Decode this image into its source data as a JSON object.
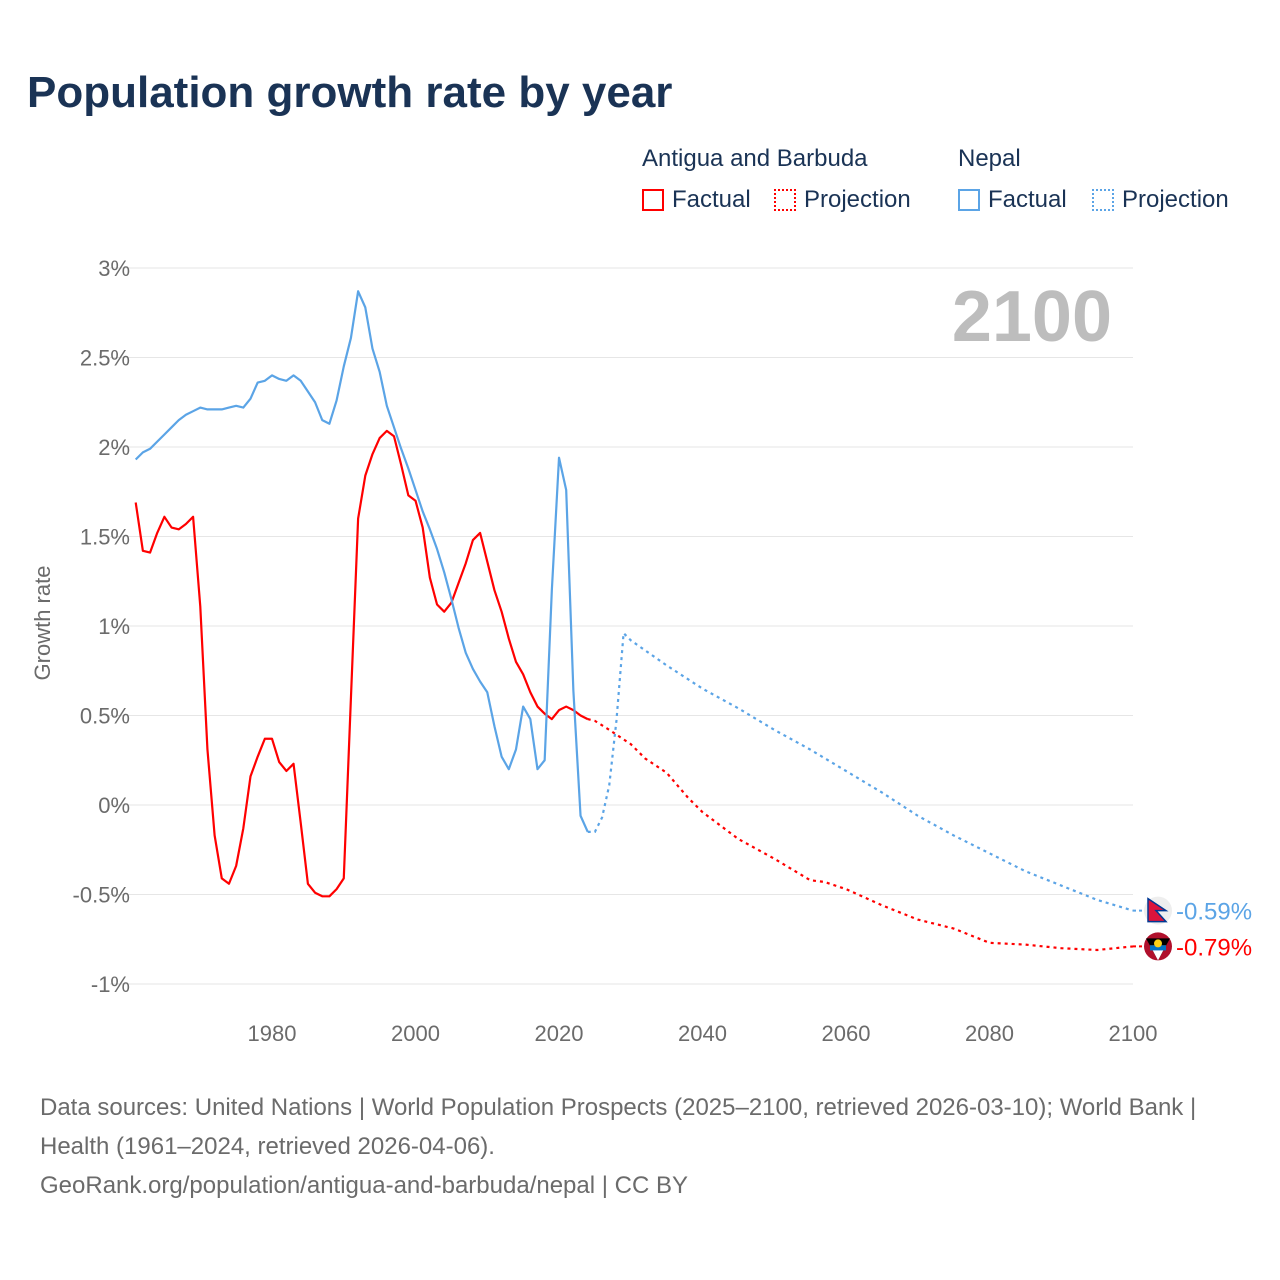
{
  "chart_data": {
    "type": "line",
    "title": "Population growth rate by year",
    "ylabel": "Growth rate",
    "xlabel": "",
    "xlim": [
      1961,
      2100
    ],
    "ylim": [
      -1,
      3
    ],
    "x_ticks": [
      "1980",
      "2000",
      "2020",
      "2040",
      "2060",
      "2080",
      "2100"
    ],
    "x_tick_values": [
      1980,
      2000,
      2020,
      2040,
      2060,
      2080,
      2100
    ],
    "y_ticks": [
      "3%",
      "2.5%",
      "2%",
      "1.5%",
      "1%",
      "0.5%",
      "0%",
      "-0.5%",
      "-1%"
    ],
    "y_tick_values": [
      3,
      2.5,
      2,
      1.5,
      1,
      0.5,
      0,
      -0.5,
      -1
    ],
    "grid": true,
    "current_year": "2100",
    "legend_position": "top-right",
    "series": [
      {
        "name": "Antigua and Barbuda",
        "color": "#ff0000",
        "end_label": "-0.79%",
        "factual_label": "Factual",
        "projection_label": "Projection",
        "factual": {
          "start_year": 1961,
          "values": [
            1.69,
            1.42,
            1.41,
            1.52,
            1.61,
            1.55,
            1.54,
            1.57,
            1.61,
            1.11,
            0.31,
            -0.17,
            -0.41,
            -0.44,
            -0.34,
            -0.13,
            0.16,
            0.27,
            0.37,
            0.37,
            0.24,
            0.19,
            0.23,
            -0.1,
            -0.44,
            -0.49,
            -0.51,
            -0.51,
            -0.47,
            -0.41,
            0.6,
            1.6,
            1.84,
            1.96,
            2.05,
            2.09,
            2.06,
            1.9,
            1.73,
            1.7,
            1.55,
            1.27,
            1.12,
            1.08,
            1.13,
            1.24,
            1.35,
            1.48,
            1.52,
            1.36,
            1.2,
            1.08,
            0.93,
            0.8,
            0.73,
            0.63,
            0.55,
            0.51,
            0.48,
            0.53,
            0.55,
            0.53,
            0.5,
            0.48
          ]
        },
        "projection": {
          "points": [
            [
              2024,
              0.48
            ],
            [
              2025,
              0.47
            ],
            [
              2027,
              0.42
            ],
            [
              2030,
              0.34
            ],
            [
              2032,
              0.26
            ],
            [
              2035,
              0.18
            ],
            [
              2038,
              0.04
            ],
            [
              2040,
              -0.04
            ],
            [
              2045,
              -0.19
            ],
            [
              2050,
              -0.3
            ],
            [
              2055,
              -0.42
            ],
            [
              2057,
              -0.43
            ],
            [
              2060,
              -0.47
            ],
            [
              2065,
              -0.56
            ],
            [
              2070,
              -0.64
            ],
            [
              2075,
              -0.69
            ],
            [
              2080,
              -0.77
            ],
            [
              2085,
              -0.78
            ],
            [
              2090,
              -0.8
            ],
            [
              2095,
              -0.81
            ],
            [
              2100,
              -0.79
            ]
          ]
        }
      },
      {
        "name": "Nepal",
        "color": "#5ba4e6",
        "end_label": "-0.59%",
        "factual_label": "Factual",
        "projection_label": "Projection",
        "factual": {
          "start_year": 1961,
          "values": [
            1.93,
            1.97,
            1.99,
            2.03,
            2.07,
            2.11,
            2.15,
            2.18,
            2.2,
            2.22,
            2.21,
            2.21,
            2.21,
            2.22,
            2.23,
            2.22,
            2.27,
            2.36,
            2.37,
            2.4,
            2.38,
            2.37,
            2.4,
            2.37,
            2.31,
            2.25,
            2.15,
            2.13,
            2.26,
            2.45,
            2.61,
            2.87,
            2.78,
            2.55,
            2.42,
            2.23,
            2.11,
            1.99,
            1.88,
            1.76,
            1.64,
            1.54,
            1.43,
            1.3,
            1.15,
            0.99,
            0.85,
            0.76,
            0.69,
            0.63,
            0.44,
            0.27,
            0.2,
            0.31,
            0.55,
            0.48,
            0.2,
            0.25,
            1.2,
            1.94,
            1.76,
            0.64,
            -0.06,
            -0.15
          ]
        },
        "projection": {
          "points": [
            [
              2024,
              -0.15
            ],
            [
              2025,
              -0.15
            ],
            [
              2026,
              -0.07
            ],
            [
              2027,
              0.11
            ],
            [
              2028,
              0.47
            ],
            [
              2029,
              0.96
            ],
            [
              2030,
              0.92
            ],
            [
              2035,
              0.78
            ],
            [
              2040,
              0.65
            ],
            [
              2045,
              0.54
            ],
            [
              2050,
              0.42
            ],
            [
              2055,
              0.31
            ],
            [
              2060,
              0.19
            ],
            [
              2065,
              0.07
            ],
            [
              2070,
              -0.06
            ],
            [
              2075,
              -0.17
            ],
            [
              2080,
              -0.27
            ],
            [
              2085,
              -0.37
            ],
            [
              2090,
              -0.45
            ],
            [
              2095,
              -0.53
            ],
            [
              2100,
              -0.59
            ]
          ]
        }
      }
    ]
  },
  "footer": {
    "sources": "Data sources: United Nations | World Population Prospects (2025–2100, retrieved 2026-03-10); World Bank | Health (1961–2024, retrieved 2026-04-06).",
    "url": "GeoRank.org/population/antigua-and-barbuda/nepal | CC BY"
  }
}
